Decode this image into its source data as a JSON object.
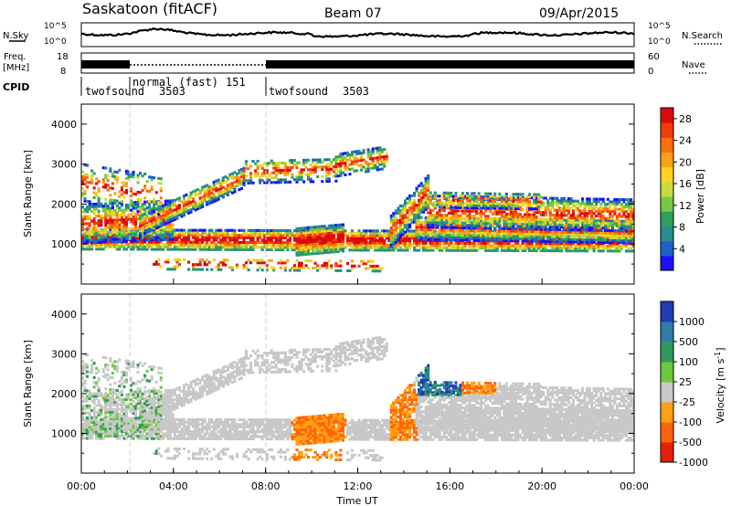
{
  "header": {
    "station": "Saskatoon (fitACF)",
    "beam": "Beam 07",
    "date": "09/Apr/2015"
  },
  "top_panels": {
    "nsky_label": "N.Sky",
    "nsky_ticks": [
      "10^5",
      "10^0"
    ],
    "nsearch_label": "N.Search",
    "nsearch_ticks": [
      "10^5",
      "10^0"
    ],
    "freq_label": "Freq.",
    "freq_unit": "[MHz]",
    "freq_ticks": [
      "18",
      "8"
    ],
    "nave_label": "Nave",
    "nave_ticks": [
      "60",
      "0"
    ],
    "cpid_label": "CPID",
    "cpid_segments": [
      {
        "name": "twofsound",
        "id": "3503",
        "start_hour": 0,
        "end_hour": 2
      },
      {
        "name": "normal (fast)",
        "id": "151",
        "start_hour": 2,
        "end_hour": 8
      },
      {
        "name": "twofsound",
        "id": "3503",
        "start_hour": 8,
        "end_hour": 24
      }
    ]
  },
  "chart_data": [
    {
      "type": "heatmap",
      "name": "power",
      "ylabel": "Slant Range [km]",
      "ylim": [
        0,
        4500
      ],
      "yticks": [
        "1000",
        "2000",
        "3000",
        "4000"
      ],
      "xlim": [
        0,
        24
      ],
      "colorbar": {
        "label": "Power [dB]",
        "ticks": [
          "4",
          "8",
          "12",
          "16",
          "20",
          "24",
          "28"
        ],
        "range": [
          0,
          30
        ],
        "colors": [
          "#1a0fff",
          "#2060c8",
          "#2a8c8c",
          "#2ea05a",
          "#78c846",
          "#c8dc3c",
          "#ffd21e",
          "#ffa014",
          "#ff6e0a",
          "#f03c0a",
          "#dc0a0a"
        ]
      }
    },
    {
      "type": "heatmap",
      "name": "velocity",
      "ylabel": "Slant Range [km]",
      "ylim": [
        0,
        4500
      ],
      "yticks": [
        "1000",
        "2000",
        "3000",
        "4000"
      ],
      "xlim": [
        0,
        24
      ],
      "xticks": [
        "00:00",
        "04:00",
        "08:00",
        "12:00",
        "16:00",
        "20:00",
        "00:00"
      ],
      "xlabel": "Time UT",
      "colorbar": {
        "label": "Velocity [m s",
        "label_exp": "-1",
        "label_close": "]",
        "ticks": [
          "1000",
          "500",
          "100",
          "25",
          "-25",
          "-100",
          "-500",
          "-1000"
        ],
        "colors": [
          "#1e3cb4",
          "#2e7da8",
          "#2e9a5a",
          "#6cc83c",
          "#c8c8c8",
          "#ffa014",
          "#ff640a",
          "#e61e0a"
        ]
      }
    }
  ]
}
